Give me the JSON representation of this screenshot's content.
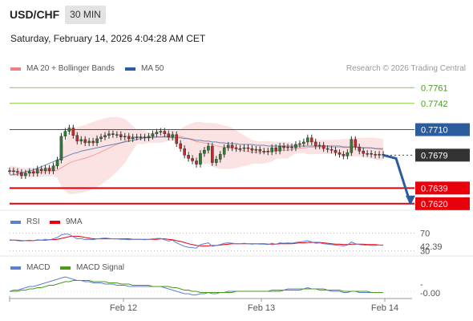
{
  "header": {
    "symbol": "USD/CHF",
    "timeframe": "30 MIN",
    "datetime": "Saturday, February 14, 2026 4:04:28 AM CET",
    "credit": "Research © 2026 Trading Central"
  },
  "colors": {
    "bollinger": "#f08080",
    "ma50": "#2a5c9e",
    "support": "#e8000b",
    "resistance_line": "#8cc63f",
    "pivot": "#2a5c9e",
    "rsi": "#5b7fd6",
    "rsi_ma": "#e8000b",
    "macd": "#5b7fd6",
    "macd_signal": "#4a9a1a",
    "candle_up": "#2e7d32",
    "candle_down": "#c62828"
  },
  "legend": {
    "ma20_bb": "MA 20 + Bollinger Bands",
    "ma50": "MA 50",
    "rsi": "RSI",
    "rsi_ma": "9MA",
    "macd": "MACD",
    "macd_signal": "MACD Signal"
  },
  "chart_data": [
    {
      "type": "candlestick",
      "title": "USD/CHF",
      "ylim": [
        0.7612,
        0.7772
      ],
      "levels": [
        {
          "label": "0.7761",
          "value": 0.7761,
          "kind": "resistance"
        },
        {
          "label": "0.7742",
          "value": 0.7742,
          "kind": "resistance"
        },
        {
          "label": "0.7710",
          "value": 0.771,
          "kind": "pivot"
        },
        {
          "label": "0.7679",
          "value": 0.7679,
          "kind": "last"
        },
        {
          "label": "0.7639",
          "value": 0.7639,
          "kind": "support"
        },
        {
          "label": "0.7620",
          "value": 0.762,
          "kind": "support"
        }
      ],
      "x_ticks": [
        "Feb 12",
        "Feb 13",
        "Feb 14"
      ],
      "close": [
        0.766,
        0.7659,
        0.7658,
        0.7654,
        0.7657,
        0.7659,
        0.7657,
        0.7662,
        0.766,
        0.7663,
        0.766,
        0.7666,
        0.7673,
        0.7702,
        0.7708,
        0.7712,
        0.7703,
        0.7696,
        0.7698,
        0.7694,
        0.7696,
        0.7694,
        0.7699,
        0.7701,
        0.7703,
        0.7705,
        0.7704,
        0.7704,
        0.7701,
        0.7702,
        0.7699,
        0.7701,
        0.7701,
        0.7701,
        0.77,
        0.7702,
        0.7705,
        0.7707,
        0.7708,
        0.7705,
        0.7701,
        0.7704,
        0.7693,
        0.7687,
        0.7679,
        0.7675,
        0.7672,
        0.7668,
        0.7681,
        0.7685,
        0.769,
        0.767,
        0.7674,
        0.768,
        0.7688,
        0.7691,
        0.7688,
        0.7687,
        0.7687,
        0.7688,
        0.7687,
        0.7685,
        0.7686,
        0.7684,
        0.7684,
        0.7683,
        0.7688,
        0.7684,
        0.769,
        0.7688,
        0.7689,
        0.7688,
        0.7692,
        0.7693,
        0.7695,
        0.77,
        0.7695,
        0.769,
        0.7691,
        0.7687,
        0.7686,
        0.7685,
        0.7682,
        0.768,
        0.7678,
        0.7682,
        0.7698,
        0.7689,
        0.7684,
        0.7681,
        0.7681,
        0.768,
        0.7679,
        0.768,
        0.7679
      ],
      "ma50": [
        0.7655,
        0.7655,
        0.7656,
        0.7657,
        0.7659,
        0.766,
        0.7661,
        0.7663,
        0.7665,
        0.7667,
        0.7669,
        0.7671,
        0.7673,
        0.7675,
        0.7677,
        0.7679,
        0.7681,
        0.7682,
        0.7684,
        0.7685,
        0.7686,
        0.7687,
        0.7688,
        0.7689,
        0.769,
        0.7691,
        0.7692,
        0.7693,
        0.7694,
        0.7695,
        0.7696,
        0.7697,
        0.7698,
        0.7699,
        0.77,
        0.77,
        0.7701,
        0.7701,
        0.7701,
        0.7701,
        0.7701,
        0.77,
        0.77,
        0.77,
        0.7699,
        0.7699,
        0.7698,
        0.7697,
        0.7697,
        0.7696,
        0.7696,
        0.7695,
        0.7695,
        0.7694,
        0.7694,
        0.7693,
        0.7693,
        0.7693,
        0.7692,
        0.7692,
        0.7692,
        0.7692,
        0.7691,
        0.7691,
        0.7691,
        0.769,
        0.769,
        0.769,
        0.769,
        0.769,
        0.769,
        0.769,
        0.769,
        0.769,
        0.769,
        0.769,
        0.769,
        0.769,
        0.769,
        0.769,
        0.769,
        0.769,
        0.769,
        0.769,
        0.7689,
        0.7689,
        0.7689,
        0.7689,
        0.7688,
        0.7688,
        0.7688,
        0.7688,
        0.7687,
        0.7687,
        0.7687
      ],
      "forecast": [
        0.7679,
        0.7675,
        0.762
      ]
    },
    {
      "type": "line",
      "title": "RSI",
      "levels": [
        {
          "label": "70",
          "value": 70
        },
        {
          "label": "30",
          "value": 30
        }
      ],
      "last_label": "42.39",
      "rsi": [
        55,
        54,
        53,
        52,
        53,
        54,
        53,
        55,
        54,
        56,
        55,
        57,
        60,
        66,
        68,
        67,
        62,
        57,
        58,
        55,
        56,
        55,
        57,
        58,
        59,
        58,
        57,
        57,
        56,
        56,
        55,
        56,
        56,
        56,
        55,
        56,
        57,
        58,
        58,
        55,
        52,
        54,
        48,
        44,
        40,
        38,
        37,
        36,
        44,
        46,
        48,
        40,
        42,
        44,
        47,
        48,
        47,
        46,
        46,
        47,
        46,
        45,
        46,
        45,
        45,
        44,
        47,
        45,
        48,
        47,
        48,
        47,
        49,
        50,
        51,
        53,
        50,
        47,
        48,
        46,
        45,
        44,
        43,
        42,
        41,
        43,
        50,
        46,
        44,
        43,
        43,
        42,
        42,
        43,
        42.39
      ],
      "rsi_ma": [
        54,
        54,
        54,
        53,
        53,
        53,
        53,
        54,
        54,
        54,
        55,
        55,
        56,
        58,
        60,
        62,
        63,
        63,
        62,
        60,
        59,
        57,
        57,
        57,
        57,
        57,
        57,
        57,
        57,
        57,
        57,
        56,
        56,
        56,
        56,
        56,
        56,
        56,
        57,
        57,
        56,
        55,
        53,
        51,
        49,
        46,
        44,
        42,
        41,
        41,
        41,
        42,
        42,
        43,
        44,
        45,
        46,
        46,
        46,
        46,
        46,
        46,
        46,
        46,
        46,
        45,
        45,
        45,
        46,
        46,
        46,
        46,
        47,
        48,
        48,
        49,
        49,
        49,
        49,
        48,
        47,
        46,
        45,
        45,
        44,
        44,
        45,
        45,
        45,
        45,
        44,
        44,
        44,
        43,
        43
      ]
    },
    {
      "type": "line",
      "title": "MACD",
      "last_label": "-0.00",
      "macd": [
        0.0,
        0.0001,
        0.0001,
        0.0002,
        0.0003,
        0.0004,
        0.0004,
        0.0005,
        0.0006,
        0.0007,
        0.0008,
        0.0009,
        0.001,
        0.0011,
        0.0012,
        0.0011,
        0.001,
        0.0009,
        0.0009,
        0.0008,
        0.0008,
        0.0007,
        0.0007,
        0.0007,
        0.0006,
        0.0006,
        0.0006,
        0.0005,
        0.0005,
        0.0005,
        0.0004,
        0.0004,
        0.0004,
        0.0004,
        0.0004,
        0.0004,
        0.0004,
        0.0004,
        0.0004,
        0.0003,
        0.0002,
        0.0001,
        0.0,
        -0.0001,
        -0.0002,
        -0.0002,
        -0.0003,
        -0.0003,
        -0.0002,
        -0.0002,
        -0.0001,
        -0.0002,
        -0.0002,
        -0.0001,
        -0.0001,
        0.0,
        0.0,
        0.0,
        0.0,
        0.0,
        0.0,
        0.0,
        0.0,
        0.0,
        0.0,
        0.0,
        0.0001,
        0.0001,
        0.0001,
        0.0001,
        0.0002,
        0.0002,
        0.0002,
        0.0002,
        0.0002,
        0.0003,
        0.0002,
        0.0002,
        0.0001,
        0.0001,
        0.0001,
        0.0,
        0.0,
        0.0,
        -0.0001,
        -0.0001,
        0.0,
        0.0,
        -0.0001,
        -0.0001,
        -0.0001,
        -0.0001,
        -0.0001,
        -0.0001,
        -0.0001
      ],
      "signal": [
        0.0,
        0.0,
        0.0,
        0.0001,
        0.0001,
        0.0002,
        0.0002,
        0.0003,
        0.0003,
        0.0004,
        0.0005,
        0.0005,
        0.0006,
        0.0007,
        0.0008,
        0.0008,
        0.0009,
        0.0009,
        0.0009,
        0.0009,
        0.0009,
        0.0008,
        0.0008,
        0.0008,
        0.0008,
        0.0007,
        0.0007,
        0.0007,
        0.0006,
        0.0006,
        0.0006,
        0.0005,
        0.0005,
        0.0005,
        0.0005,
        0.0005,
        0.0004,
        0.0004,
        0.0004,
        0.0004,
        0.0004,
        0.0003,
        0.0003,
        0.0002,
        0.0001,
        0.0001,
        0.0,
        0.0,
        -0.0001,
        -0.0001,
        -0.0001,
        -0.0001,
        -0.0001,
        -0.0001,
        -0.0001,
        -0.0001,
        -0.0001,
        0.0,
        0.0,
        0.0,
        0.0,
        0.0,
        0.0,
        0.0,
        0.0,
        0.0,
        0.0,
        0.0,
        0.0,
        0.0001,
        0.0001,
        0.0001,
        0.0001,
        0.0001,
        0.0002,
        0.0002,
        0.0002,
        0.0002,
        0.0002,
        0.0002,
        0.0001,
        0.0001,
        0.0001,
        0.0001,
        0.0,
        0.0,
        0.0,
        0.0,
        0.0,
        0.0,
        0.0,
        -0.0001,
        -0.0001,
        -0.0001,
        -0.0001
      ]
    }
  ]
}
